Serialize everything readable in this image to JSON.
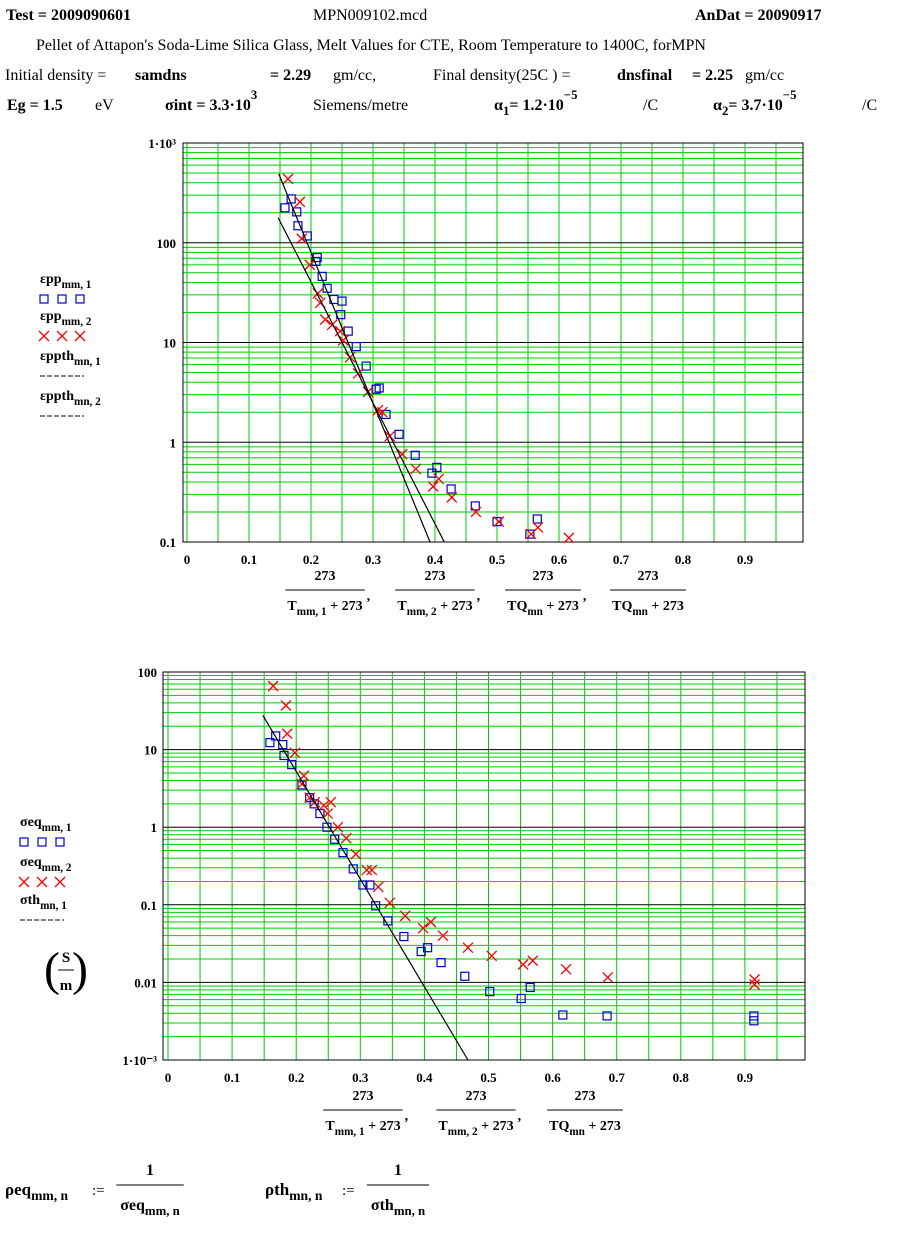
{
  "header": {
    "test": "Test = 2009090601",
    "file": "MPN009102.mcd",
    "andat": "AnDat = 20090917",
    "description": "Pellet of Attapon's Soda-Lime Silica Glass, Melt Values for CTE,  Room Temperature to 1400C,  forMPN",
    "density": {
      "initial_label": "Initial density =",
      "initial_var": "samdns",
      "initial_value": "= 2.29",
      "initial_unit": "gm/cc,",
      "final_label": "Final density(25C ) =",
      "final_var": "dnsfinal",
      "final_value": "= 2.25",
      "final_unit": "gm/cc"
    },
    "params": {
      "eg": "Eg = 1.5",
      "eg_unit": "eV",
      "sigma": "σint = 3.3·10",
      "sigma_exp": "3",
      "sigma_unit": "Siemens/metre",
      "alpha1": "α",
      "alpha1_sub": "1",
      "alpha1_value": "= 1.2·10",
      "alpha1_exp": "−5",
      "alpha1_unit": "/C",
      "alpha2": "α",
      "alpha2_sub": "2",
      "alpha2_value": "= 3.7·10",
      "alpha2_exp": "−5",
      "alpha2_unit": "/C"
    }
  },
  "chart_data": [
    {
      "type": "scatter",
      "log_y": true,
      "grid": true,
      "grid_color": "#00cc00",
      "major_grid_color": "#000000",
      "legend": "left",
      "xlim": [
        0,
        1
      ],
      "ylim": [
        0.1,
        1000
      ],
      "xticks": [
        0,
        0.1,
        0.2,
        0.3,
        0.4,
        0.5,
        0.6,
        0.7,
        0.8,
        0.9
      ],
      "yticks": [
        {
          "value": 1000,
          "label": "1·10³"
        },
        100,
        10,
        1,
        0.1
      ],
      "x_label": [
        {
          "numerator": "273",
          "var": "T",
          "sub": "mm, 1",
          "rest": " + 273"
        },
        {
          "numerator": "273",
          "var": "T",
          "sub": "mm, 2",
          "rest": " + 273"
        },
        {
          "numerator": "273",
          "var": "TQ",
          "sub": "mn",
          "rest": " + 273"
        },
        {
          "numerator": "273",
          "var": "TQ",
          "sub": "mn",
          "rest": " + 273"
        }
      ],
      "x_label_sep": ",",
      "series": [
        {
          "name": "εpp",
          "name_sub": "mm, 1",
          "color": "#0000cc",
          "marker": "square",
          "x": [
            0.158,
            0.168,
            0.177,
            0.179,
            0.194,
            0.21,
            0.208,
            0.218,
            0.226,
            0.237,
            0.25,
            0.248,
            0.26,
            0.273,
            0.289,
            0.305,
            0.31,
            0.321,
            0.342,
            0.368,
            0.395,
            0.403,
            0.426,
            0.465,
            0.5,
            0.553,
            0.565
          ],
          "values": [
            224,
            275,
            204,
            148,
            117,
            71,
            65,
            46,
            35,
            27,
            26,
            19,
            13,
            9.1,
            5.8,
            3.4,
            3.5,
            1.9,
            1.2,
            0.74,
            0.49,
            0.56,
            0.34,
            0.23,
            0.16,
            0.12,
            0.17
          ]
        },
        {
          "name": "εpp",
          "name_sub": "mm, 2",
          "color": "#ff0000",
          "marker": "x",
          "x": [
            0.163,
            0.182,
            0.185,
            0.198,
            0.211,
            0.215,
            0.223,
            0.234,
            0.247,
            0.252,
            0.263,
            0.276,
            0.292,
            0.308,
            0.315,
            0.327,
            0.347,
            0.369,
            0.397,
            0.406,
            0.427,
            0.466,
            0.503,
            0.555,
            0.566,
            0.616
          ],
          "values": [
            437,
            257,
            110,
            60,
            31,
            25,
            17,
            15,
            13,
            10.5,
            7.1,
            4.9,
            3.2,
            2.1,
            2.0,
            1.15,
            0.76,
            0.54,
            0.36,
            0.43,
            0.28,
            0.2,
            0.16,
            0.12,
            0.14,
            0.11
          ]
        },
        {
          "name": "εppth",
          "name_sub": "mn, 1",
          "color": "#000000",
          "marker": "line",
          "x": [
            0.148,
            0.392
          ],
          "values": [
            490,
            0.1
          ]
        },
        {
          "name": "εppth",
          "name_sub": "mn, 2",
          "color": "#000000",
          "marker": "line",
          "x": [
            0.147,
            0.415
          ],
          "values": [
            178,
            0.1
          ]
        }
      ]
    },
    {
      "type": "scatter",
      "log_y": true,
      "grid": true,
      "grid_color": "#00cc00",
      "major_grid_color": "#000000",
      "legend": "left",
      "xlim": [
        0,
        1
      ],
      "ylim": [
        0.001,
        100
      ],
      "xticks": [
        0,
        0.1,
        0.2,
        0.3,
        0.4,
        0.5,
        0.6,
        0.7,
        0.8,
        0.9
      ],
      "yticks": [
        100,
        10,
        1,
        0.1,
        0.01,
        {
          "value": 0.001,
          "label": "1·10⁻³"
        }
      ],
      "x_label": [
        {
          "numerator": "273",
          "var": "T",
          "sub": "mm, 1",
          "rest": " + 273"
        },
        {
          "numerator": "273",
          "var": "T",
          "sub": "mm, 2",
          "rest": " + 273"
        },
        {
          "numerator": "273",
          "var": "TQ",
          "sub": "mn",
          "rest": " + 273"
        }
      ],
      "x_label_sep": ",",
      "y_label": {
        "open": "(",
        "numerator": "S",
        "denominator": "m",
        "close": ")"
      },
      "series": [
        {
          "name": "σeq",
          "name_sub": "mm, 1",
          "color": "#0000cc",
          "marker": "square",
          "x": [
            0.159,
            0.168,
            0.179,
            0.181,
            0.193,
            0.209,
            0.221,
            0.228,
            0.237,
            0.248,
            0.26,
            0.273,
            0.289,
            0.304,
            0.315,
            0.324,
            0.343,
            0.368,
            0.395,
            0.405,
            0.426,
            0.463,
            0.502,
            0.551,
            0.565,
            0.616,
            0.685,
            0.914,
            0.914
          ],
          "values": [
            12.3,
            15,
            11.6,
            8.4,
            6.4,
            3.5,
            2.4,
            2.0,
            1.5,
            1,
            0.7,
            0.47,
            0.29,
            0.18,
            0.18,
            0.097,
            0.062,
            0.039,
            0.025,
            0.028,
            0.018,
            0.012,
            0.0076,
            0.0062,
            0.0086,
            0.0038,
            0.0037,
            0.0037,
            0.0032
          ]
        },
        {
          "name": "σeq",
          "name_sub": "mm, 2",
          "color": "#ff0000",
          "marker": "x",
          "x": [
            0.164,
            0.184,
            0.186,
            0.198,
            0.209,
            0.212,
            0.221,
            0.229,
            0.243,
            0.254,
            0.249,
            0.265,
            0.278,
            0.293,
            0.31,
            0.318,
            0.328,
            0.346,
            0.37,
            0.398,
            0.41,
            0.429,
            0.468,
            0.505,
            0.554,
            0.569,
            0.621,
            0.686,
            0.915,
            0.915
          ],
          "values": [
            66,
            37,
            16,
            9.1,
            3.6,
            4.6,
            2.4,
            2.1,
            1.9,
            2.1,
            1.5,
            1.0,
            0.72,
            0.45,
            0.28,
            0.28,
            0.17,
            0.106,
            0.072,
            0.05,
            0.06,
            0.04,
            0.028,
            0.022,
            0.017,
            0.019,
            0.0148,
            0.0116,
            0.0109,
            0.0094
          ]
        },
        {
          "name": "σth",
          "name_sub": "mn, 1",
          "color": "#000000",
          "marker": "line",
          "x": [
            0.148,
            0.468
          ],
          "values": [
            27.6,
            0.001
          ]
        }
      ]
    }
  ],
  "formulas": [
    {
      "lhs": "ρeq",
      "lhs_sub": "mm, n",
      "assign": ":=",
      "numerator": "1",
      "den": "σeq",
      "den_sub": "mm, n"
    },
    {
      "lhs": "ρth",
      "lhs_sub": "mn, n",
      "assign": ":=",
      "numerator": "1",
      "den": "σth",
      "den_sub": "mn, n"
    }
  ]
}
